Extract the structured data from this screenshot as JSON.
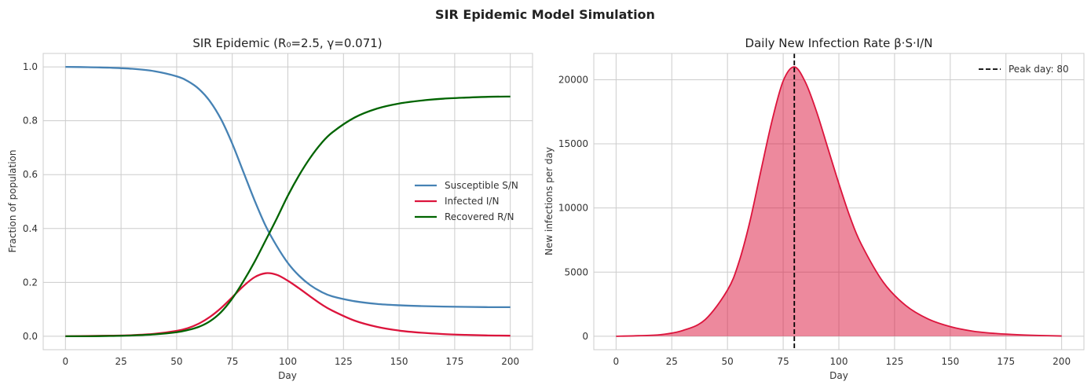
{
  "figure_title": "SIR Epidemic Model Simulation",
  "colors": {
    "susceptible": "#4682b4",
    "infected": "#dc143c",
    "recovered": "#006400",
    "peak_line": "#000000",
    "area_fill": "#dc143c"
  },
  "chart_data": [
    {
      "type": "line",
      "title": "SIR Epidemic (R₀=2.5, γ=0.071)",
      "xlabel": "Day",
      "ylabel": "Fraction of population",
      "xlim": [
        -10,
        210
      ],
      "ylim": [
        -0.05,
        1.05
      ],
      "xticks": [
        0,
        25,
        50,
        75,
        100,
        125,
        150,
        175,
        200
      ],
      "yticks": [
        0.0,
        0.2,
        0.4,
        0.6,
        0.8,
        1.0
      ],
      "ytick_labels": [
        "0.0",
        "0.2",
        "0.4",
        "0.6",
        "0.8",
        "1.0"
      ],
      "grid": true,
      "legend_position": "center-right",
      "x": [
        0,
        10,
        20,
        30,
        40,
        50,
        55,
        60,
        65,
        70,
        75,
        80,
        85,
        90,
        95,
        100,
        105,
        110,
        115,
        120,
        130,
        140,
        150,
        160,
        170,
        180,
        190,
        200
      ],
      "series": [
        {
          "name": "Susceptible S/N",
          "color_key": "susceptible",
          "values": [
            1.0,
            0.999,
            0.997,
            0.993,
            0.984,
            0.965,
            0.947,
            0.918,
            0.872,
            0.805,
            0.715,
            0.61,
            0.505,
            0.41,
            0.335,
            0.272,
            0.225,
            0.19,
            0.165,
            0.148,
            0.13,
            0.12,
            0.115,
            0.112,
            0.11,
            0.109,
            0.108,
            0.108
          ]
        },
        {
          "name": "Infected I/N",
          "color_key": "infected",
          "values": [
            0.0,
            0.001,
            0.002,
            0.004,
            0.009,
            0.02,
            0.03,
            0.047,
            0.072,
            0.105,
            0.145,
            0.186,
            0.219,
            0.234,
            0.228,
            0.206,
            0.178,
            0.148,
            0.119,
            0.095,
            0.058,
            0.035,
            0.021,
            0.013,
            0.008,
            0.005,
            0.003,
            0.002
          ]
        },
        {
          "name": "Recovered R/N",
          "color_key": "recovered",
          "values": [
            0.0,
            0.0,
            0.001,
            0.003,
            0.007,
            0.015,
            0.023,
            0.035,
            0.056,
            0.09,
            0.14,
            0.204,
            0.276,
            0.356,
            0.437,
            0.522,
            0.597,
            0.662,
            0.716,
            0.757,
            0.812,
            0.845,
            0.864,
            0.875,
            0.882,
            0.886,
            0.889,
            0.89
          ]
        }
      ]
    },
    {
      "type": "area",
      "title": "Daily New Infection Rate β·S·I/N",
      "xlabel": "Day",
      "ylabel": "New infections per day",
      "xlim": [
        -10,
        210
      ],
      "ylim": [
        -1050,
        22050
      ],
      "xticks": [
        0,
        25,
        50,
        75,
        100,
        125,
        150,
        175,
        200
      ],
      "yticks": [
        0,
        5000,
        10000,
        15000,
        20000
      ],
      "ytick_labels": [
        "0",
        "5000",
        "10000",
        "15000",
        "20000"
      ],
      "grid": true,
      "legend_position": "top-right",
      "x": [
        0,
        10,
        20,
        30,
        40,
        50,
        55,
        60,
        65,
        70,
        75,
        80,
        85,
        90,
        95,
        100,
        105,
        110,
        120,
        130,
        140,
        150,
        160,
        170,
        180,
        190,
        200
      ],
      "series": [
        {
          "name": "New infections",
          "color_key": "infected",
          "values": [
            0,
            40,
            120,
            450,
            1300,
            3600,
            5700,
            8900,
            12900,
            16800,
            19900,
            21000,
            19800,
            17500,
            14700,
            11900,
            9300,
            7200,
            4200,
            2400,
            1350,
            750,
            400,
            220,
            120,
            60,
            20
          ]
        }
      ],
      "peak": {
        "x": 80,
        "label": "Peak day: 80",
        "color_key": "peak_line"
      }
    }
  ]
}
